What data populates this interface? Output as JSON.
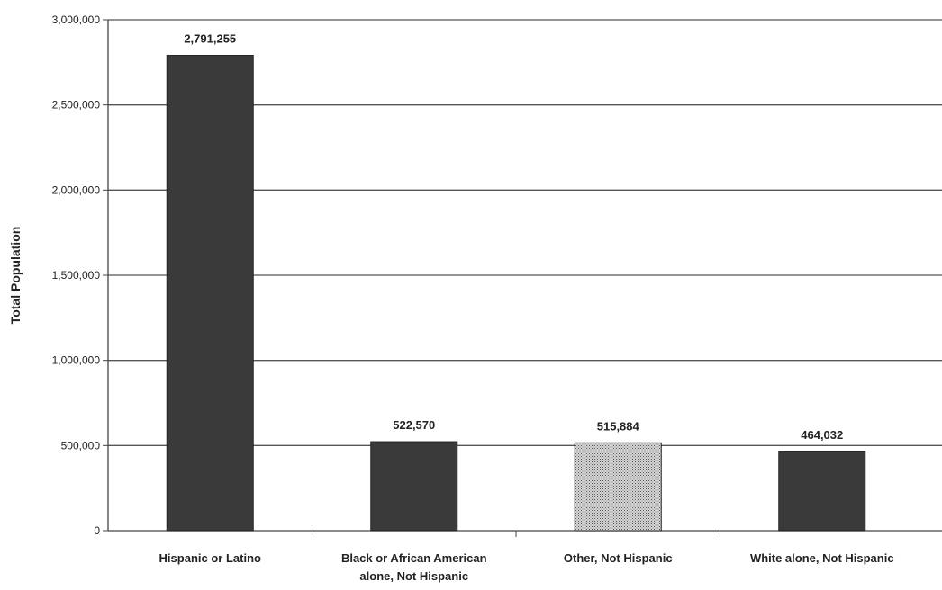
{
  "chart_data": {
    "type": "bar",
    "categories": [
      "Hispanic or Latino",
      "Black or African American alone, Not Hispanic",
      "Other, Not Hispanic",
      "White alone, Not Hispanic"
    ],
    "category_lines": [
      [
        "Hispanic or Latino"
      ],
      [
        "Black or African American",
        "alone, Not Hispanic"
      ],
      [
        "Other, Not Hispanic"
      ],
      [
        "White alone, Not Hispanic"
      ]
    ],
    "values": [
      2791255,
      522570,
      515884,
      464032
    ],
    "data_labels": [
      "2,791,255",
      "522,570",
      "515,884",
      "464,032"
    ],
    "bar_colors": [
      "#3a3a3a",
      "#3a3a3a",
      "#bdbdbd",
      "#3a3a3a"
    ],
    "bar_patterns": [
      "solid",
      "solid",
      "dotted",
      "solid"
    ],
    "title": "",
    "xlabel": "",
    "ylabel": "Total Population",
    "ylim": [
      0,
      3000000
    ],
    "yticks": [
      0,
      500000,
      1000000,
      1500000,
      2000000,
      2500000,
      3000000
    ],
    "ytick_labels": [
      "0",
      "500,000",
      "1,000,000",
      "1,500,000",
      "2,000,000",
      "2,500,000",
      "3,000,000"
    ],
    "grid": true,
    "legend": "none"
  }
}
